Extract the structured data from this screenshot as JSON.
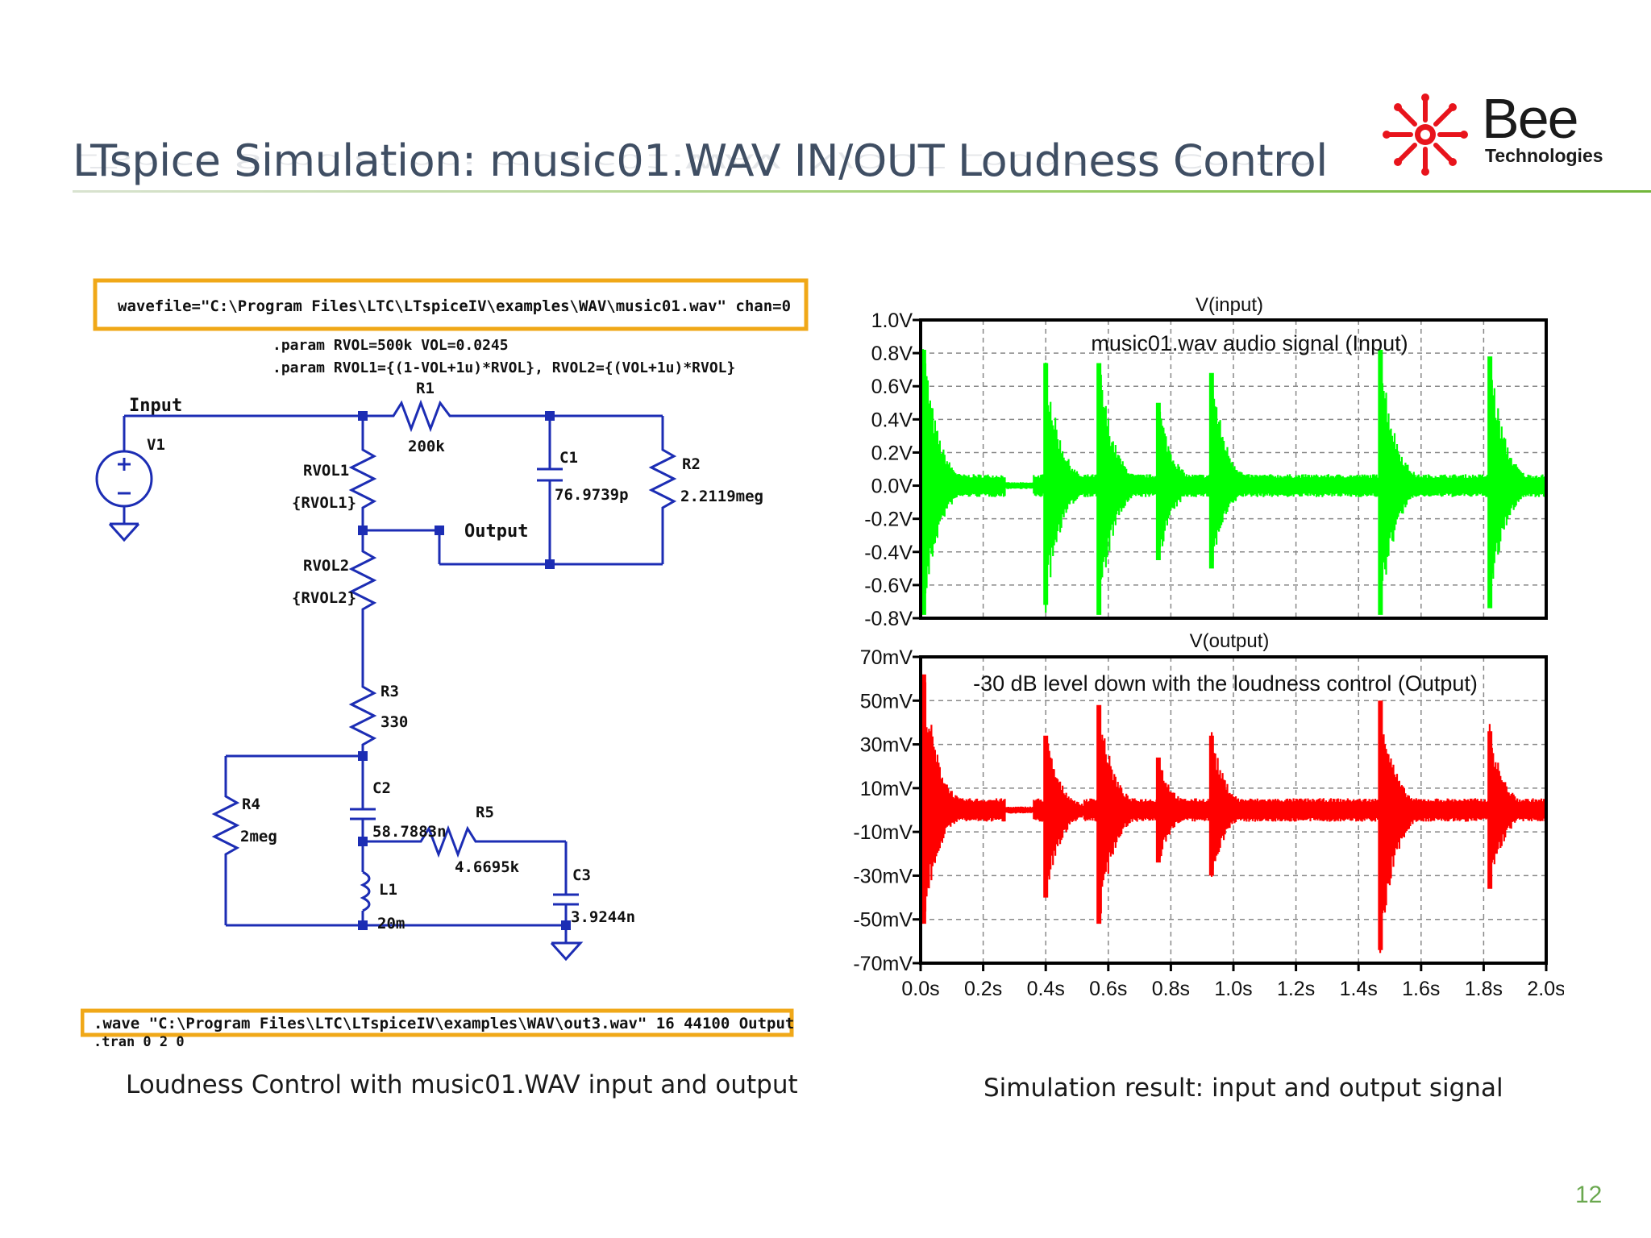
{
  "slide": {
    "title": "LTspice Simulation: music01.WAV IN/OUT Loudness Control",
    "page_number": "12"
  },
  "logo": {
    "word": "Bee",
    "subtitle": "Technologies",
    "colors": {
      "star": "#e8141c",
      "text": "#1a1a1a"
    }
  },
  "schematic": {
    "wavefile_directive": "wavefile=\"C:\\Program Files\\LTC\\LTspiceIV\\examples\\WAV\\music01.wav\" chan=0",
    "param_line_1": ".param RVOL=500k VOL=0.0245",
    "param_line_2": ".param RVOL1={(1-VOL+1u)*RVOL}, RVOL2={(VOL+1u)*RVOL}",
    "wave_directive": ".wave \"C:\\Program Files\\LTC\\LTspiceIV\\examples\\WAV\\out3.wav\" 16 44100 Output",
    "tran_directive": ".tran 0 2 0",
    "net_input": "Input",
    "net_output": "Output",
    "components": {
      "V1": {
        "name": "V1"
      },
      "R1": {
        "name": "R1",
        "value": "200k"
      },
      "C1": {
        "name": "C1",
        "value": "76.9739p"
      },
      "R2": {
        "name": "R2",
        "value": "2.2119meg"
      },
      "RVOL1": {
        "name": "RVOL1",
        "value": "{RVOL1}"
      },
      "RVOL2": {
        "name": "RVOL2",
        "value": "{RVOL2}"
      },
      "R3": {
        "name": "R3",
        "value": "330"
      },
      "R4": {
        "name": "R4",
        "value": "2meg"
      },
      "C2": {
        "name": "C2",
        "value": "58.7883n"
      },
      "R5": {
        "name": "R5",
        "value": "4.6695k"
      },
      "L1": {
        "name": "L1",
        "value": "20m"
      },
      "C3": {
        "name": "C3",
        "value": "3.9244n"
      }
    },
    "colors": {
      "wire": "#1c2db4",
      "highlight": "#f0a818",
      "text": "#111111"
    }
  },
  "chart_data": [
    {
      "type": "line",
      "title": "V(input)",
      "annotation": "music01.wav audio signal (Input)",
      "color": "#00ff00",
      "x_range": [
        0,
        2.0
      ],
      "x_unit": "s",
      "ylim": [
        -0.8,
        1.0
      ],
      "y_ticks": [
        "1.0V",
        "0.8V",
        "0.6V",
        "0.4V",
        "0.2V",
        "0.0V",
        "-0.2V",
        "-0.4V",
        "-0.6V",
        "-0.8V"
      ],
      "grid": true,
      "transients": [
        {
          "t": 0.01,
          "peak": 0.82,
          "trough": -0.78
        },
        {
          "t": 0.4,
          "peak": 0.74,
          "trough": -0.72
        },
        {
          "t": 0.57,
          "peak": 0.74,
          "trough": -0.78
        },
        {
          "t": 0.76,
          "peak": 0.5,
          "trough": -0.45
        },
        {
          "t": 0.93,
          "peak": 0.68,
          "trough": -0.5
        },
        {
          "t": 1.47,
          "peak": 0.82,
          "trough": -0.78
        },
        {
          "t": 1.82,
          "peak": 0.78,
          "trough": -0.74
        }
      ]
    },
    {
      "type": "line",
      "title": "V(output)",
      "annotation": "-30 dB level down with the loudness control (Output)",
      "color": "#ff0000",
      "x_range": [
        0,
        2.0
      ],
      "x_unit": "s",
      "x_ticks": [
        "0.0s",
        "0.2s",
        "0.4s",
        "0.6s",
        "0.8s",
        "1.0s",
        "1.2s",
        "1.4s",
        "1.6s",
        "1.8s",
        "2.0s"
      ],
      "ylim": [
        -70,
        70
      ],
      "y_unit": "mV",
      "y_ticks": [
        "70mV",
        "50mV",
        "30mV",
        "10mV",
        "-10mV",
        "-30mV",
        "-50mV",
        "-70mV"
      ],
      "grid": true,
      "transients": [
        {
          "t": 0.01,
          "peak": 62,
          "trough": -52
        },
        {
          "t": 0.4,
          "peak": 34,
          "trough": -40
        },
        {
          "t": 0.57,
          "peak": 48,
          "trough": -52
        },
        {
          "t": 0.76,
          "peak": 24,
          "trough": -24
        },
        {
          "t": 0.93,
          "peak": 34,
          "trough": -30
        },
        {
          "t": 1.47,
          "peak": 50,
          "trough": -64
        },
        {
          "t": 1.82,
          "peak": 36,
          "trough": -36
        }
      ]
    }
  ],
  "captions": {
    "left": "Loudness Control with music01.WAV input and output",
    "right": "Simulation result: input and output signal"
  }
}
